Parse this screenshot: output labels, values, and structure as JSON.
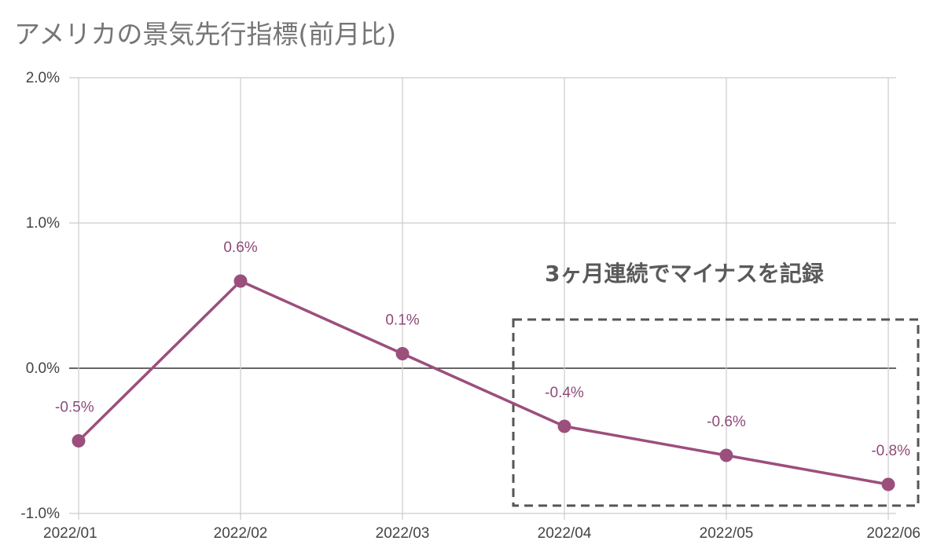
{
  "chart_data": {
    "type": "line",
    "title": "アメリカの景気先行指標(前月比)",
    "categories": [
      "2022/01",
      "2022/02",
      "2022/03",
      "2022/04",
      "2022/05",
      "2022/06"
    ],
    "series": [
      {
        "values": [
          -0.5,
          0.6,
          0.1,
          -0.4,
          -0.6,
          -0.8
        ]
      }
    ],
    "data_labels": [
      "-0.5%",
      "0.6%",
      "0.1%",
      "-0.4%",
      "-0.6%",
      "-0.8%"
    ],
    "yticks": [
      2.0,
      1.0,
      0.0,
      -1.0
    ],
    "ytick_labels": [
      "2.0%",
      "1.0%",
      "0.0%",
      "-1.0%"
    ],
    "ylim": [
      -1.0,
      2.0
    ],
    "grid": true,
    "annotation": "3ヶ月連続でマイナスを記録",
    "highlight_range": [
      "2022/04",
      "2022/06"
    ],
    "colors": {
      "series": "#9b4f7d",
      "label": "#8e4a78",
      "grid": "#cccccc",
      "zero_line": "#333333",
      "box": "#555555",
      "title": "#757575"
    }
  }
}
